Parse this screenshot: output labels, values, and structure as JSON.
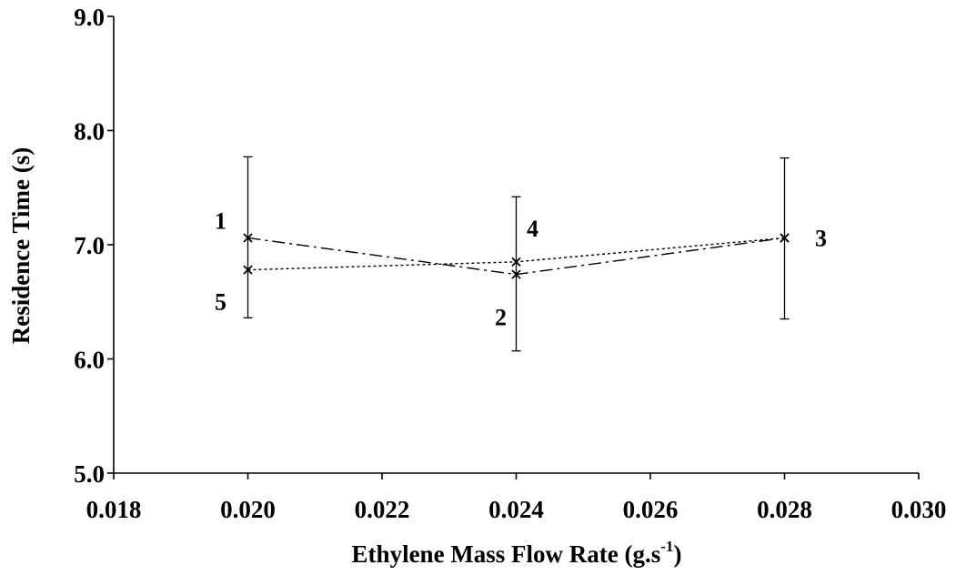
{
  "chart_data": {
    "type": "line",
    "title": "",
    "xlabel": "Ethylene Mass Flow Rate (g.s",
    "xlabel_sup": "-1",
    "xlabel_end": ")",
    "ylabel": "Residence Time (s)",
    "xlim": [
      0.018,
      0.03
    ],
    "ylim": [
      5.0,
      9.0
    ],
    "x_ticks": [
      "0.018",
      "0.020",
      "0.022",
      "0.024",
      "0.026",
      "0.028",
      "0.030"
    ],
    "y_ticks": [
      "5.0",
      "6.0",
      "7.0",
      "8.0",
      "9.0"
    ],
    "grid": false,
    "legend": "none",
    "series": [
      {
        "style": "dash-dot",
        "x": [
          0.02,
          0.024,
          0.028
        ],
        "y": [
          7.06,
          6.74,
          7.06
        ],
        "point_labels": [
          "1",
          "2",
          "3"
        ]
      },
      {
        "style": "dotted",
        "x": [
          0.02,
          0.024,
          0.028
        ],
        "y": [
          6.78,
          6.85,
          7.06
        ],
        "point_labels": [
          "5",
          "4",
          "3"
        ]
      }
    ],
    "error_bars": [
      {
        "x": 0.02,
        "low": 6.36,
        "high": 7.77
      },
      {
        "x": 0.024,
        "low": 6.07,
        "high": 7.42
      },
      {
        "x": 0.028,
        "low": 6.35,
        "high": 7.76
      }
    ],
    "point_labels": [
      {
        "text": "1",
        "x": 0.02,
        "y": 7.06
      },
      {
        "text": "5",
        "x": 0.02,
        "y": 6.78
      },
      {
        "text": "4",
        "x": 0.024,
        "y": 6.85
      },
      {
        "text": "2",
        "x": 0.024,
        "y": 6.74
      },
      {
        "text": "3",
        "x": 0.028,
        "y": 7.06
      }
    ]
  }
}
